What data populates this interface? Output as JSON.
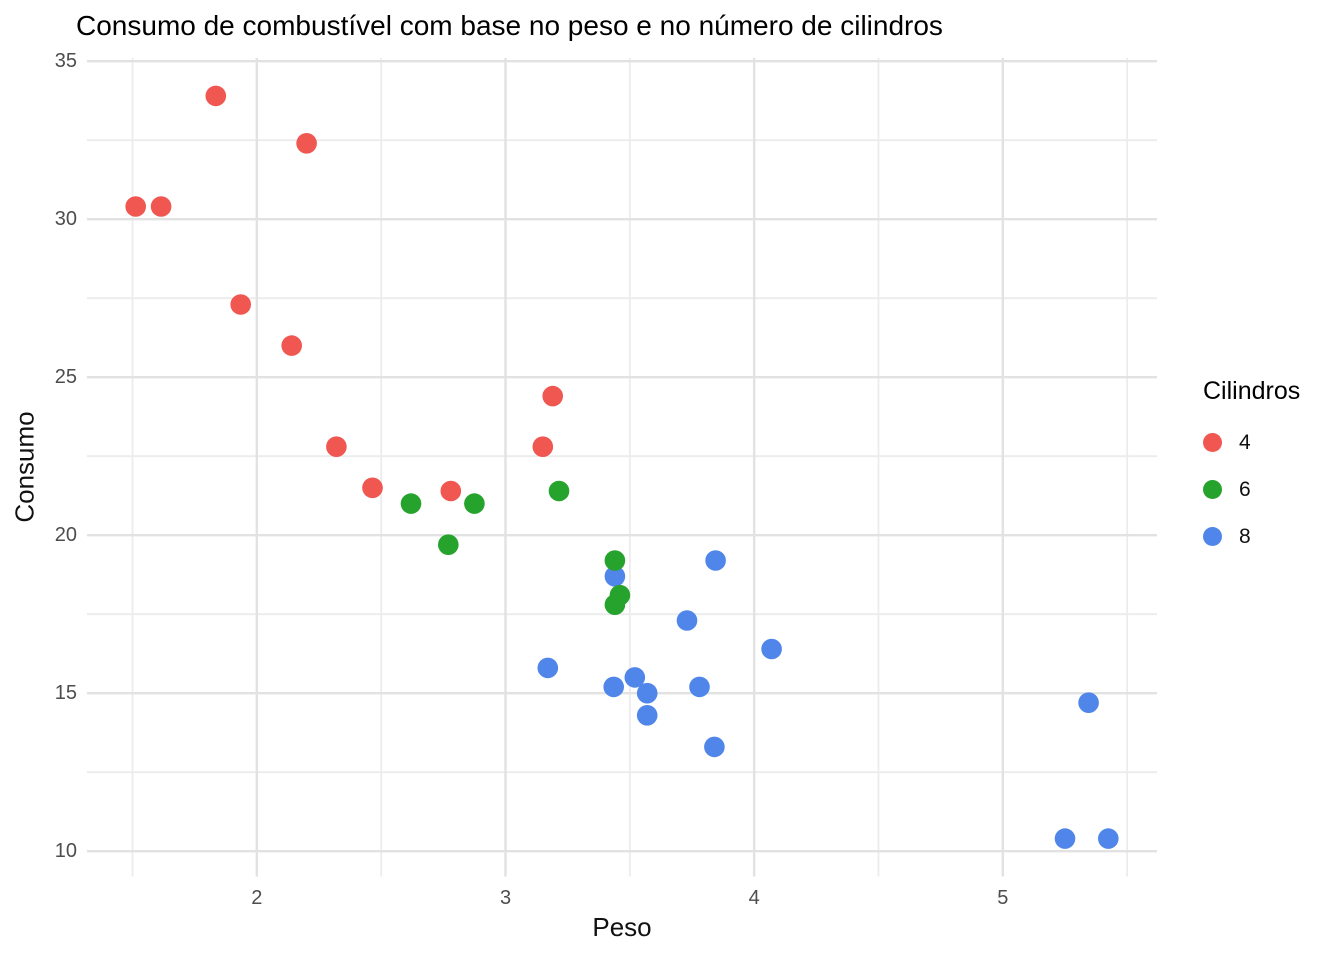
{
  "chart_data": {
    "type": "scatter",
    "title": "Consumo de combustível com base no peso e no número de cilindros",
    "xlabel": "Peso",
    "ylabel": "Consumo",
    "xlim": [
      1.317,
      5.62
    ],
    "ylim": [
      9.2,
      35.1
    ],
    "x_major_ticks": [
      2,
      3,
      4,
      5
    ],
    "x_minor_ticks": [
      1.5,
      2.5,
      3.5,
      4.5,
      5.5
    ],
    "y_major_ticks": [
      10,
      15,
      20,
      25,
      30,
      35
    ],
    "y_minor_ticks": [
      12.5,
      17.5,
      22.5,
      27.5,
      32.5
    ],
    "grid": {
      "background": "#FFFFFF",
      "major_color": "#E2E2E2",
      "minor_color": "#ECECEC"
    },
    "legend": {
      "title": "Cilindros",
      "position": "right"
    },
    "series": [
      {
        "name": "4",
        "color": "#F05751",
        "points": [
          [
            2.32,
            22.8
          ],
          [
            3.19,
            24.4
          ],
          [
            3.15,
            22.8
          ],
          [
            2.2,
            32.4
          ],
          [
            1.615,
            30.4
          ],
          [
            1.835,
            33.9
          ],
          [
            2.465,
            21.5
          ],
          [
            1.935,
            27.3
          ],
          [
            2.14,
            26.0
          ],
          [
            1.513,
            30.4
          ],
          [
            2.78,
            21.4
          ]
        ]
      },
      {
        "name": "6",
        "color": "#26A32C",
        "points": [
          [
            2.62,
            21.0
          ],
          [
            2.875,
            21.0
          ],
          [
            3.215,
            21.4
          ],
          [
            3.46,
            18.1
          ],
          [
            3.44,
            19.2
          ],
          [
            3.44,
            17.8
          ],
          [
            2.77,
            19.7
          ]
        ]
      },
      {
        "name": "8",
        "color": "#5086E9",
        "points": [
          [
            3.44,
            18.7
          ],
          [
            3.57,
            14.3
          ],
          [
            4.07,
            16.4
          ],
          [
            3.73,
            17.3
          ],
          [
            3.78,
            15.2
          ],
          [
            5.25,
            10.4
          ],
          [
            5.424,
            10.4
          ],
          [
            5.345,
            14.7
          ],
          [
            3.52,
            15.5
          ],
          [
            3.435,
            15.2
          ],
          [
            3.84,
            13.3
          ],
          [
            3.845,
            19.2
          ],
          [
            3.17,
            15.8
          ],
          [
            3.57,
            15.0
          ]
        ]
      }
    ]
  }
}
